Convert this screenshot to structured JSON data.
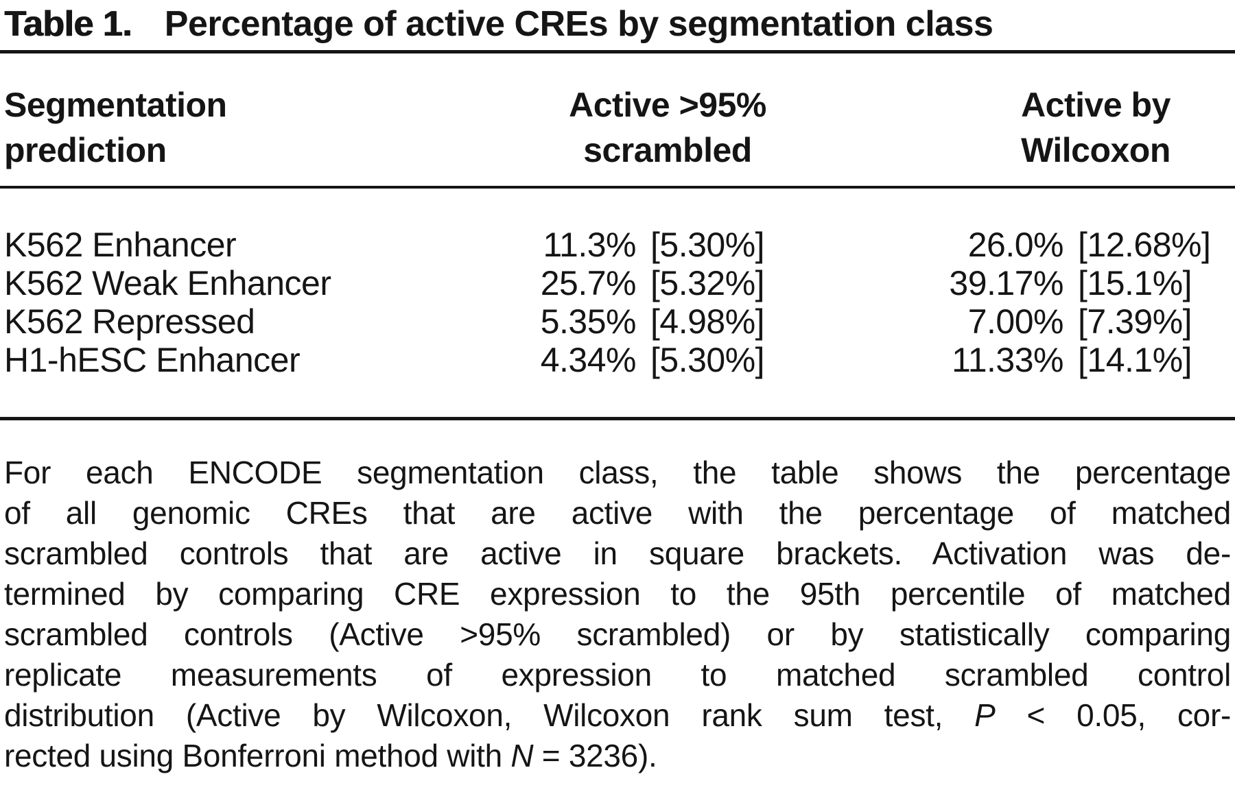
{
  "title": {
    "label": "Table 1.",
    "text": "Percentage of active CREs by segmentation class"
  },
  "table": {
    "headers": [
      {
        "line1": "Segmentation",
        "line2": "prediction"
      },
      {
        "line1": "Active >95%",
        "line2": "scrambled"
      },
      {
        "line1": "Active by",
        "line2": "Wilcoxon"
      }
    ],
    "rows": [
      {
        "label": "K562 Enhancer",
        "scrambled_pct": "11.3%",
        "scrambled_ctrl": "[5.30%]",
        "wilcoxon_pct": "26.0%",
        "wilcoxon_ctrl": "[12.68%]"
      },
      {
        "label": "K562 Weak Enhancer",
        "scrambled_pct": "25.7%",
        "scrambled_ctrl": "[5.32%]",
        "wilcoxon_pct": "39.17%",
        "wilcoxon_ctrl": "[15.1%]"
      },
      {
        "label": "K562 Repressed",
        "scrambled_pct": "5.35%",
        "scrambled_ctrl": "[4.98%]",
        "wilcoxon_pct": "7.00%",
        "wilcoxon_ctrl": "[7.39%]"
      },
      {
        "label": "H1-hESC Enhancer",
        "scrambled_pct": "4.34%",
        "scrambled_ctrl": "[5.30%]",
        "wilcoxon_pct": "11.33%",
        "wilcoxon_ctrl": "[14.1%]"
      }
    ]
  },
  "footnote": {
    "lines": [
      [
        {
          "t": "For each ENCODE segmentation class, the table shows the percentage"
        }
      ],
      [
        {
          "t": "of all genomic CREs that are active with the percentage of matched"
        }
      ],
      [
        {
          "t": "scrambled controls that are active in square brackets. Activation was de-"
        }
      ],
      [
        {
          "t": "termined by comparing CRE expression to the 95th percentile of matched"
        }
      ],
      [
        {
          "t": "scrambled controls (Active >95% scrambled) or by statistically comparing"
        }
      ],
      [
        {
          "t": "replicate measurements of expression to matched scrambled control"
        }
      ],
      [
        {
          "t": "distribution (Active by Wilcoxon, Wilcoxon rank sum test, "
        },
        {
          "t": "P",
          "i": true
        },
        {
          "t": " < 0.05, cor-"
        }
      ],
      [
        {
          "t": "rected using Bonferroni method with "
        },
        {
          "t": "N",
          "i": true
        },
        {
          "t": " = 3236)."
        }
      ]
    ]
  },
  "colors": {
    "text": "#151515",
    "background": "#ffffff",
    "rule": "#151515"
  }
}
